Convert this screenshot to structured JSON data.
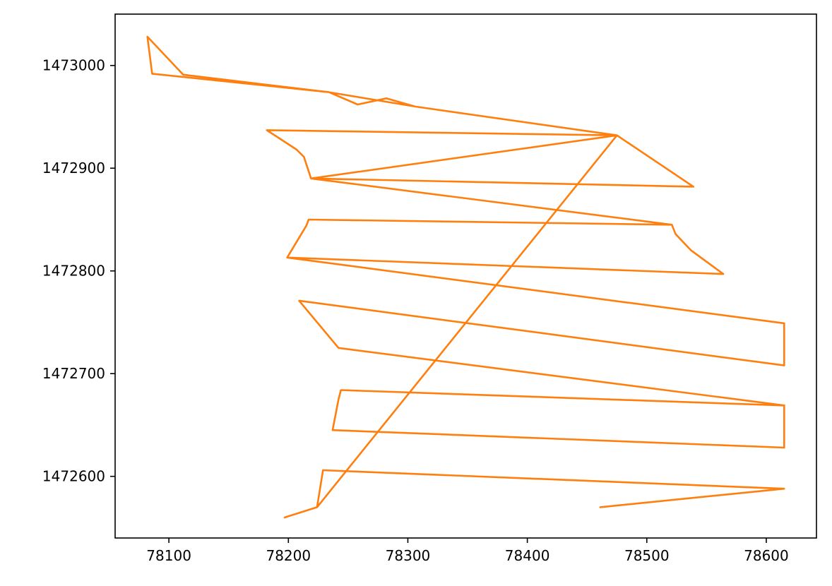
{
  "chart_data": {
    "type": "line",
    "title": "",
    "xlabel": "",
    "ylabel": "",
    "xlim": [
      78055,
      78642
    ],
    "ylim": [
      1472540,
      1473050
    ],
    "xticks": [
      78100,
      78200,
      78300,
      78400,
      78500,
      78600
    ],
    "yticks": [
      1472600,
      1472700,
      1472800,
      1472900,
      1473000
    ],
    "xtick_labels": [
      "78100",
      "78200",
      "78300",
      "78400",
      "78500",
      "78600"
    ],
    "ytick_labels": [
      "1472600",
      "1472700",
      "1472800",
      "1472900",
      "1473000"
    ],
    "grid": false,
    "legend": "none",
    "series": [
      {
        "color": "#ff7f0e",
        "points": [
          [
            78197,
            1472560
          ],
          [
            78224,
            1472570
          ],
          [
            78229,
            1472606
          ],
          [
            78615,
            1472588
          ],
          [
            78461,
            1472570
          ],
          [
            78615,
            1472588
          ],
          [
            78229,
            1472606
          ],
          [
            78224,
            1472570
          ],
          [
            78475,
            1472932
          ],
          [
            78182,
            1472937
          ],
          [
            78207,
            1472918
          ],
          [
            78213,
            1472911
          ],
          [
            78219,
            1472890
          ],
          [
            78539,
            1472882
          ],
          [
            78475,
            1472932
          ],
          [
            78306,
            1472960
          ],
          [
            78282,
            1472968
          ],
          [
            78258,
            1472962
          ],
          [
            78234,
            1472974
          ],
          [
            78086,
            1472992
          ],
          [
            78082,
            1473028
          ],
          [
            78112,
            1472991
          ],
          [
            78234,
            1472974
          ],
          [
            78306,
            1472960
          ],
          [
            78475,
            1472932
          ],
          [
            78219,
            1472890
          ],
          [
            78213,
            1472911
          ],
          [
            78207,
            1472918
          ],
          [
            78182,
            1472937
          ],
          [
            78475,
            1472932
          ],
          [
            78539,
            1472882
          ],
          [
            78219,
            1472890
          ],
          [
            78521,
            1472845
          ],
          [
            78524,
            1472836
          ],
          [
            78537,
            1472820
          ],
          [
            78564,
            1472797
          ],
          [
            78199,
            1472813
          ],
          [
            78215,
            1472844
          ],
          [
            78217,
            1472850
          ],
          [
            78521,
            1472845
          ],
          [
            78524,
            1472836
          ],
          [
            78537,
            1472820
          ],
          [
            78564,
            1472797
          ],
          [
            78199,
            1472813
          ],
          [
            78615,
            1472749
          ],
          [
            78615,
            1472708
          ],
          [
            78209,
            1472771
          ],
          [
            78242,
            1472725
          ],
          [
            78615,
            1472669
          ],
          [
            78615,
            1472628
          ],
          [
            78237,
            1472645
          ],
          [
            78242,
            1472675
          ],
          [
            78244,
            1472684
          ],
          [
            78615,
            1472669
          ]
        ]
      }
    ]
  }
}
